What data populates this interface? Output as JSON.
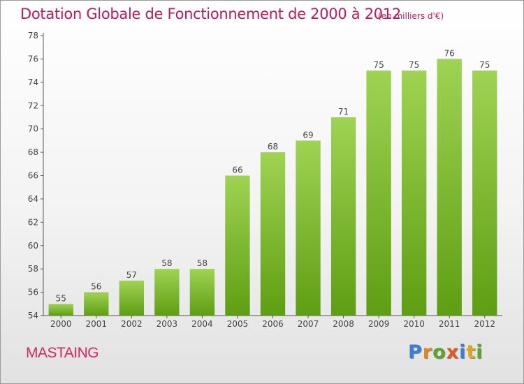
{
  "header": {
    "title": "Dotation Globale de Fonctionnement de 2000 à 2012",
    "unit": "(en milliers d'€)"
  },
  "footer": {
    "commune": "MASTAING",
    "logo_text": "Proxiti"
  },
  "colors": {
    "title": "#c2185b",
    "bar_top": "#9fd353",
    "bar_bottom": "#5e9e12",
    "logo_letters": [
      "#3a7fd5",
      "#e08a1a",
      "#5aa52e",
      "#e05a1a",
      "#3a7fd5",
      "#e0a81a",
      "#5aa52e"
    ]
  },
  "chart_data": {
    "type": "bar",
    "title": "Dotation Globale de Fonctionnement de 2000 à 2012",
    "subtitle": "(en milliers d'€)",
    "xlabel": "",
    "ylabel": "",
    "categories": [
      "2000",
      "2001",
      "2002",
      "2003",
      "2004",
      "2005",
      "2006",
      "2007",
      "2008",
      "2009",
      "2010",
      "2011",
      "2012"
    ],
    "values": [
      55,
      56,
      57,
      58,
      58,
      66,
      68,
      69,
      71,
      75,
      75,
      76,
      75
    ],
    "ylim": [
      54,
      78
    ],
    "yticks": [
      54,
      56,
      58,
      60,
      62,
      64,
      66,
      68,
      70,
      72,
      74,
      76,
      78
    ],
    "grid": false,
    "data_labels": true
  }
}
